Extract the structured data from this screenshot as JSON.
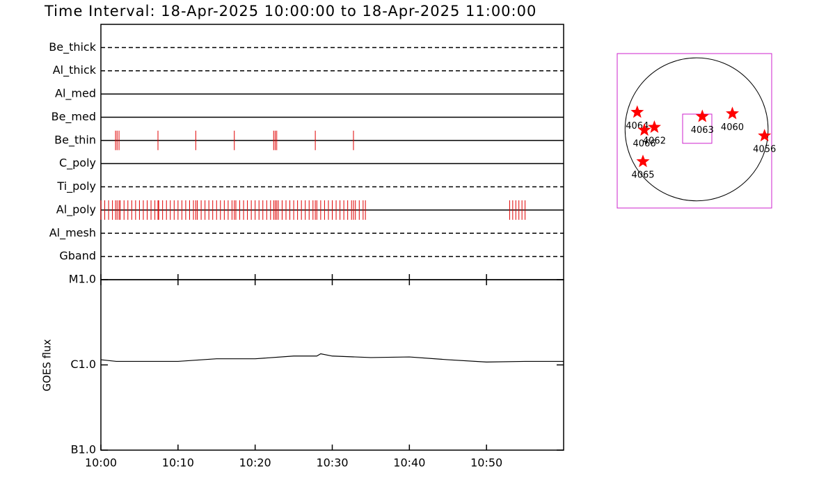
{
  "chart_data": [
    {
      "type": "timeline",
      "title": "Time Interval: 18-Apr-2025 10:00:00 to 18-Apr-2025 11:00:00",
      "categories": [
        "Be_thick",
        "Al_thick",
        "Al_med",
        "Be_med",
        "Be_thin",
        "C_poly",
        "Ti_poly",
        "Al_poly",
        "Al_mesh",
        "Gband"
      ],
      "line_styles": [
        "dashed",
        "dashed",
        "solid",
        "solid",
        "solid",
        "solid",
        "dashed",
        "solid",
        "dashed",
        "dashed"
      ],
      "xlim": [
        0,
        60
      ],
      "xticks": [
        0,
        10,
        20,
        30,
        40,
        50
      ],
      "events": [
        {
          "category": "Be_thin",
          "color": "#e00000",
          "x": [
            1.9,
            2.1,
            2.35,
            7.4,
            12.3,
            17.3,
            22.4,
            22.6,
            22.8,
            27.8,
            32.75
          ]
        },
        {
          "category": "Al_poly",
          "color": "#e00000",
          "x": [
            0,
            0.5,
            1,
            1.5,
            1.9,
            2.1,
            2.35,
            2.5,
            3,
            3.5,
            4,
            4.5,
            5,
            5.5,
            6,
            6.5,
            7,
            7.4,
            7.5,
            8,
            8.5,
            9,
            9.5,
            10,
            10.5,
            11,
            11.5,
            12,
            12.3,
            12.5,
            13,
            13.5,
            14,
            14.5,
            15,
            15.5,
            16,
            16.5,
            17,
            17.3,
            17.5,
            18,
            18.5,
            19,
            19.5,
            20,
            20.5,
            21,
            21.5,
            22,
            22.4,
            22.6,
            22.8,
            23,
            23.5,
            24,
            24.5,
            25,
            25.5,
            26,
            26.5,
            27,
            27.5,
            27.8,
            28,
            28.5,
            29,
            29.5,
            30,
            30.5,
            31,
            31.5,
            32,
            32.5,
            32.75,
            33,
            33.5,
            34,
            34.3,
            53,
            53.4,
            53.8,
            54.2,
            54.6,
            55
          ]
        }
      ]
    },
    {
      "type": "line",
      "ylabel": "GOES flux",
      "log_scale": true,
      "xlim": [
        0,
        60
      ],
      "xticks": [
        {
          "value": 0,
          "label": "10:00"
        },
        {
          "value": 10,
          "label": "10:10"
        },
        {
          "value": 20,
          "label": "10:20"
        },
        {
          "value": 30,
          "label": "10:30"
        },
        {
          "value": 40,
          "label": "10:40"
        },
        {
          "value": 50,
          "label": "10:50"
        }
      ],
      "ylim": [
        1e-07,
        1e-05
      ],
      "yticks": [
        {
          "value": 1e-07,
          "label": "B1.0"
        },
        {
          "value": 1e-06,
          "label": "C1.0"
        },
        {
          "value": 1e-05,
          "label": "M1.0"
        }
      ],
      "x": [
        0,
        2,
        5,
        10,
        15,
        20,
        25,
        28,
        28.5,
        30,
        35,
        40,
        45,
        50,
        55,
        60
      ],
      "series": [
        {
          "color": "#000000",
          "values": [
            1.15e-06,
            1.1e-06,
            1.1e-06,
            1.1e-06,
            1.18e-06,
            1.18e-06,
            1.27e-06,
            1.27e-06,
            1.35e-06,
            1.27e-06,
            1.22e-06,
            1.24e-06,
            1.15e-06,
            1.08e-06,
            1.1e-06,
            1.1e-06
          ]
        }
      ]
    },
    {
      "type": "scatter",
      "xlim": [
        -1.11,
        1.05
      ],
      "ylim": [
        -1.1,
        1.06
      ],
      "color": "#ff0000",
      "labels": [
        "4064",
        "4066",
        "4062",
        "4065",
        "4063",
        "4060",
        "4056"
      ],
      "x": [
        -0.83,
        -0.73,
        -0.59,
        -0.75,
        0.08,
        0.5,
        0.95
      ],
      "values": [
        0.24,
        -0.01,
        0.03,
        -0.45,
        0.18,
        0.22,
        -0.09
      ]
    }
  ]
}
